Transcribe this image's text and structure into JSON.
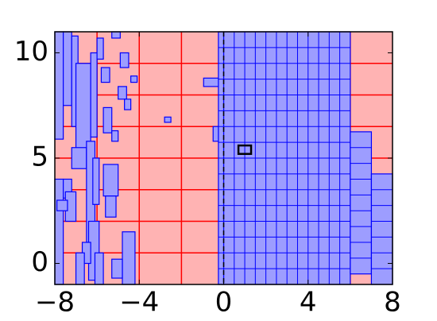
{
  "chart_data": {
    "type": "mesh",
    "xlim": [
      -8,
      8
    ],
    "ylim": [
      -1,
      11
    ],
    "xticks": [
      {
        "value": -8,
        "label": "−8"
      },
      {
        "value": -4,
        "label": "−4"
      },
      0,
      4,
      8
    ],
    "yticks": [
      0,
      5,
      10
    ],
    "background": "#ffb3b3",
    "grid_color": "#ff0000",
    "coarse_dx": 2,
    "coarse_dy": 1.5,
    "patch_color": "#9d9dff",
    "patch_edge": "#0000ff",
    "patches": [
      {
        "x": [
          0,
          6
        ],
        "y": [
          -1,
          11
        ],
        "dx": 0.5,
        "dy": 0.75
      },
      {
        "x": [
          -0.25,
          0
        ],
        "y": [
          -1,
          11
        ],
        "dx": 0.25,
        "dy": 0.75
      },
      {
        "x": [
          6,
          7
        ],
        "y": [
          -0.5,
          6.25
        ],
        "dx": 1,
        "dy": 0.75
      },
      {
        "x": [
          7,
          8
        ],
        "y": [
          -1,
          4.25
        ],
        "dx": 1,
        "dy": 0.75
      }
    ],
    "rects": [
      [
        -8,
        -7.6,
        5.9,
        11
      ],
      [
        -7.6,
        -7.2,
        7.5,
        11
      ],
      [
        -7.2,
        -6.9,
        6.5,
        10.8
      ],
      [
        -7,
        -6.3,
        5,
        9.5
      ],
      [
        -6.3,
        -6,
        6,
        10
      ],
      [
        -6,
        -5.7,
        9.7,
        10.7
      ],
      [
        -5.7,
        -5.3,
        6.2,
        7.4
      ],
      [
        -5.8,
        -5.4,
        8.6,
        9.3
      ],
      [
        -8,
        -7.6,
        -1,
        4
      ],
      [
        -7.6,
        -7.2,
        3.1,
        4
      ],
      [
        -7.5,
        -7,
        2,
        3.4
      ],
      [
        -7.2,
        -6.5,
        4.5,
        5.5
      ],
      [
        -6.5,
        -6.1,
        1,
        5.8
      ],
      [
        -6.2,
        -5.9,
        2.8,
        5
      ],
      [
        -5.7,
        -5,
        3.2,
        4.7
      ],
      [
        -5.6,
        -5.1,
        2.2,
        3.2
      ],
      [
        -6.4,
        -5.9,
        -0.8,
        2
      ],
      [
        -6.7,
        -6.3,
        0,
        1
      ],
      [
        -6.1,
        -5.7,
        -1,
        0.5
      ],
      [
        -4.8,
        -4.2,
        -1,
        1.5
      ],
      [
        -5.3,
        -4.8,
        -0.7,
        0.2
      ],
      [
        -4.9,
        -4.5,
        9.3,
        10
      ],
      [
        -5,
        -4.6,
        7.8,
        8.4
      ],
      [
        -4.7,
        -4.4,
        7.3,
        7.8
      ],
      [
        -5.3,
        -5,
        5.8,
        6.3
      ],
      [
        -5.3,
        -4.9,
        10.7,
        11
      ],
      [
        -4.4,
        -4.1,
        8.6,
        8.9
      ],
      [
        -2.8,
        -2.5,
        6.7,
        6.95
      ],
      [
        -7,
        -6.6,
        -1,
        0.5
      ],
      [
        -7.9,
        -7.4,
        2.5,
        3
      ],
      [
        -0.95,
        -0.25,
        8.4,
        8.8
      ],
      [
        -0.5,
        -0.25,
        5.8,
        6.5
      ]
    ],
    "marker": {
      "x": [
        0.7,
        1.3
      ],
      "y": [
        5.2,
        5.6
      ]
    },
    "dashed_x": 0
  }
}
